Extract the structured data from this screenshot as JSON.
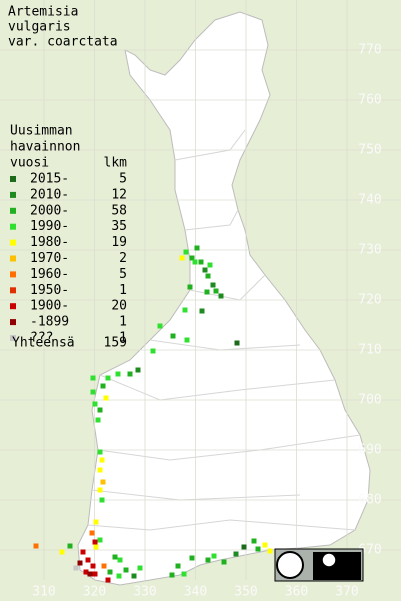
{
  "title": [
    "Artemisia",
    "vulgaris",
    "var. coarctata"
  ],
  "legend": {
    "heading": [
      "Uusimman",
      "havainnon",
      "vuosi"
    ],
    "count_header": "lkm",
    "rows": [
      {
        "label": "2015-",
        "count": 5,
        "color": "#1b6b1b"
      },
      {
        "label": "2010-",
        "count": 12,
        "color": "#1f8a1f"
      },
      {
        "label": "2000-",
        "count": 58,
        "color": "#20b020"
      },
      {
        "label": "1990-",
        "count": 35,
        "color": "#30e030"
      },
      {
        "label": "1980-",
        "count": 19,
        "color": "#ffff00"
      },
      {
        "label": "1970-",
        "count": 2,
        "color": "#ffc000"
      },
      {
        "label": "1960-",
        "count": 5,
        "color": "#ff7000"
      },
      {
        "label": "1950-",
        "count": 1,
        "color": "#e03000"
      },
      {
        "label": "1900-",
        "count": 20,
        "color": "#c80000"
      },
      {
        "label": "-1899",
        "count": 1,
        "color": "#900000"
      },
      {
        "label": "???",
        "count": 1,
        "color": "#c8c8c8"
      }
    ],
    "total_label": "Yhteensä",
    "total": 159
  },
  "x_axis": [
    310,
    320,
    330,
    340,
    350,
    360,
    370
  ],
  "y_axis": [
    670,
    680,
    690,
    700,
    710,
    720,
    730,
    740,
    750,
    760,
    770
  ]
}
